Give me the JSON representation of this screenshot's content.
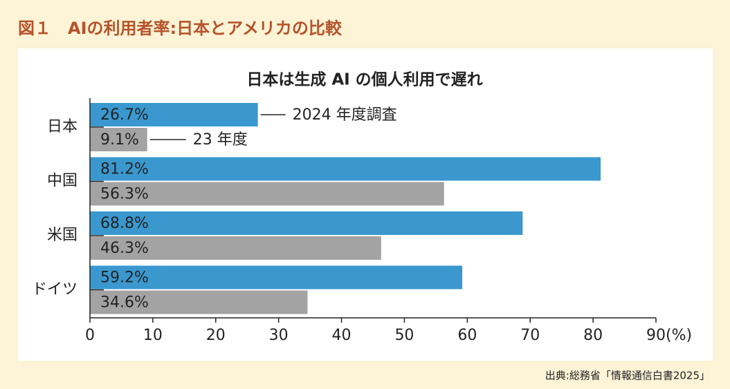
{
  "header": "図１　AIの利用者率:日本とアメリカの比較",
  "source": "出典:総務省「情報通信白書2025」",
  "chart_data": {
    "type": "bar",
    "orientation": "horizontal",
    "title": "日本は生成 AI の個人利用で遅れ",
    "categories": [
      "日本",
      "中国",
      "米国",
      "ドイツ"
    ],
    "series": [
      {
        "name": "2024 年度調査",
        "color": "#3a98cf",
        "values": [
          26.7,
          81.2,
          68.8,
          59.2
        ],
        "value_labels": [
          "26.7%",
          "81.2%",
          "68.8%",
          "59.2%"
        ]
      },
      {
        "name": "23 年度",
        "color": "#a3a3a3",
        "values": [
          9.1,
          56.3,
          46.3,
          34.6
        ],
        "value_labels": [
          "9.1%",
          "56.3%",
          "46.3%",
          "34.6%"
        ]
      }
    ],
    "xlim": [
      0,
      90
    ],
    "xticks": [
      0,
      10,
      20,
      30,
      40,
      50,
      60,
      70,
      80,
      {
        "value": 90,
        "label": "90(%)"
      }
    ]
  }
}
